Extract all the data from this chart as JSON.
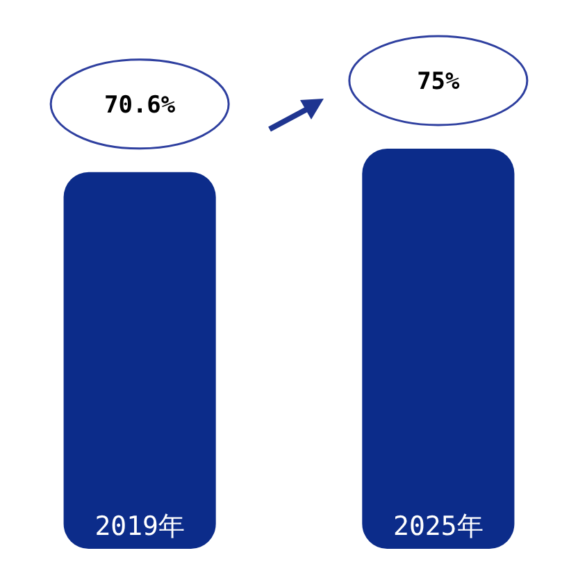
{
  "chart_data": {
    "type": "bar",
    "categories": [
      "2019年",
      "2025年"
    ],
    "values": [
      70.6,
      75
    ],
    "color": "#0c2c8a",
    "value_labels": [
      "70.6%",
      "75%"
    ]
  }
}
